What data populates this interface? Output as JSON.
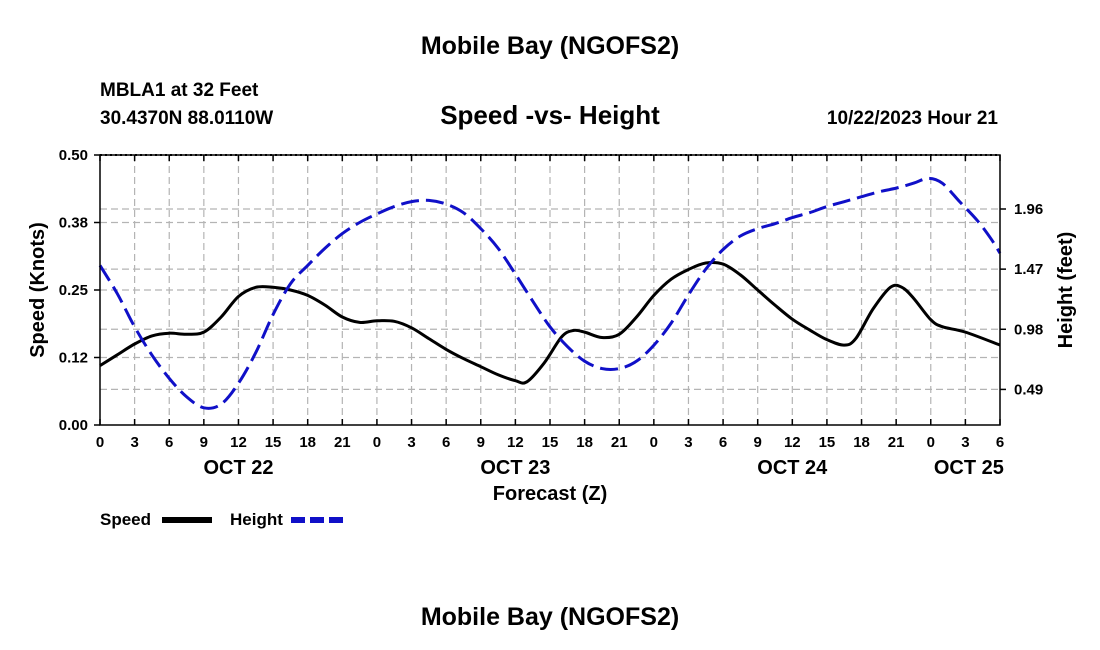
{
  "page_title": "Mobile Bay (NGOFS2)",
  "station": "MBLA1 at 32 Feet",
  "coordinates": "30.4370N  88.0110W",
  "forecast_time": "10/22/2023 Hour 21",
  "chart_data": {
    "type": "line",
    "title": "Speed -vs- Height",
    "xlabel": "Forecast (Z)",
    "ylabel": "Speed (Knots)",
    "y2label": "Height (feet)",
    "x_unit": "forecast hours from Oct 22 00Z",
    "xlim": [
      0,
      78
    ],
    "ylim": [
      0,
      0.5
    ],
    "y2lim": [
      0.2,
      2.4
    ],
    "x_ticks": [
      0,
      3,
      6,
      9,
      12,
      15,
      18,
      21,
      24,
      27,
      30,
      33,
      36,
      39,
      42,
      45,
      48,
      51,
      54,
      57,
      60,
      63,
      66,
      69,
      72,
      75,
      78
    ],
    "x_tick_labels": [
      "0",
      "3",
      "6",
      "9",
      "12",
      "15",
      "18",
      "21",
      "0",
      "3",
      "6",
      "9",
      "12",
      "15",
      "18",
      "21",
      "0",
      "3",
      "6",
      "9",
      "12",
      "15",
      "18",
      "21",
      "0",
      "3",
      "6"
    ],
    "date_labels": [
      {
        "x": 12,
        "label": "OCT 22"
      },
      {
        "x": 36,
        "label": "OCT 23"
      },
      {
        "x": 60,
        "label": "OCT 24"
      },
      {
        "x": 75.3,
        "label": "OCT 25"
      }
    ],
    "y_ticks": [
      0.0,
      0.125,
      0.25,
      0.375,
      0.5
    ],
    "y_tick_labels": [
      "0.00",
      "0.12",
      "0.25",
      "0.38",
      "0.50"
    ],
    "y2_ticks": [
      0.49,
      0.98,
      1.47,
      1.96
    ],
    "y2_tick_labels": [
      "0.49",
      "0.98",
      "1.47",
      "1.96"
    ],
    "grid": true,
    "legend": "bottom-left",
    "series": [
      {
        "name": "Speed",
        "axis": "left",
        "color": "#000000",
        "dash": "solid",
        "points": [
          [
            0,
            0.11
          ],
          [
            1.5,
            0.13
          ],
          [
            3,
            0.15
          ],
          [
            4.5,
            0.165
          ],
          [
            6,
            0.17
          ],
          [
            7.5,
            0.168
          ],
          [
            9,
            0.172
          ],
          [
            10.5,
            0.2
          ],
          [
            12,
            0.238
          ],
          [
            13.5,
            0.255
          ],
          [
            15,
            0.255
          ],
          [
            16.5,
            0.25
          ],
          [
            18,
            0.24
          ],
          [
            19.5,
            0.222
          ],
          [
            21,
            0.2
          ],
          [
            22.5,
            0.19
          ],
          [
            24,
            0.193
          ],
          [
            25.5,
            0.192
          ],
          [
            27,
            0.18
          ],
          [
            28.5,
            0.16
          ],
          [
            30,
            0.14
          ],
          [
            31.5,
            0.123
          ],
          [
            33,
            0.108
          ],
          [
            34.5,
            0.093
          ],
          [
            36,
            0.082
          ],
          [
            37,
            0.08
          ],
          [
            38.5,
            0.115
          ],
          [
            40,
            0.163
          ],
          [
            41,
            0.175
          ],
          [
            42,
            0.172
          ],
          [
            43.5,
            0.162
          ],
          [
            45,
            0.168
          ],
          [
            46.5,
            0.2
          ],
          [
            48,
            0.24
          ],
          [
            49.5,
            0.27
          ],
          [
            51,
            0.288
          ],
          [
            52.5,
            0.3
          ],
          [
            54,
            0.298
          ],
          [
            55.5,
            0.278
          ],
          [
            57,
            0.25
          ],
          [
            58.5,
            0.222
          ],
          [
            60,
            0.196
          ],
          [
            61.5,
            0.176
          ],
          [
            63,
            0.158
          ],
          [
            64.5,
            0.148
          ],
          [
            65.5,
            0.16
          ],
          [
            67,
            0.215
          ],
          [
            68.5,
            0.255
          ],
          [
            69.5,
            0.255
          ],
          [
            70.5,
            0.235
          ],
          [
            72,
            0.195
          ],
          [
            73,
            0.182
          ],
          [
            75,
            0.172
          ],
          [
            78,
            0.148
          ]
        ]
      },
      {
        "name": "Height",
        "axis": "right",
        "color": "#1010c8",
        "dash": "dashed",
        "points": [
          [
            0,
            1.5
          ],
          [
            1.5,
            1.27
          ],
          [
            3,
            1.0
          ],
          [
            4.5,
            0.77
          ],
          [
            6,
            0.58
          ],
          [
            7.5,
            0.43
          ],
          [
            9,
            0.34
          ],
          [
            10.5,
            0.37
          ],
          [
            12,
            0.54
          ],
          [
            13.5,
            0.79
          ],
          [
            15,
            1.1
          ],
          [
            16.5,
            1.35
          ],
          [
            18,
            1.5
          ],
          [
            19.5,
            1.64
          ],
          [
            21,
            1.76
          ],
          [
            22.5,
            1.85
          ],
          [
            24,
            1.92
          ],
          [
            25.5,
            1.98
          ],
          [
            27,
            2.02
          ],
          [
            28.5,
            2.03
          ],
          [
            30,
            2.0
          ],
          [
            31.5,
            1.93
          ],
          [
            33,
            1.8
          ],
          [
            34.5,
            1.64
          ],
          [
            36,
            1.43
          ],
          [
            37.5,
            1.21
          ],
          [
            39,
            1.0
          ],
          [
            40.5,
            0.84
          ],
          [
            42,
            0.72
          ],
          [
            43.5,
            0.66
          ],
          [
            45,
            0.66
          ],
          [
            46.5,
            0.72
          ],
          [
            48,
            0.85
          ],
          [
            49.5,
            1.03
          ],
          [
            51,
            1.26
          ],
          [
            52.5,
            1.47
          ],
          [
            54,
            1.63
          ],
          [
            55.5,
            1.74
          ],
          [
            57,
            1.8
          ],
          [
            58.5,
            1.84
          ],
          [
            60,
            1.89
          ],
          [
            61.5,
            1.93
          ],
          [
            63,
            1.98
          ],
          [
            64.5,
            2.02
          ],
          [
            66,
            2.06
          ],
          [
            67.5,
            2.1
          ],
          [
            69,
            2.13
          ],
          [
            70.5,
            2.17
          ],
          [
            71.8,
            2.21
          ],
          [
            73,
            2.17
          ],
          [
            74.5,
            2.02
          ],
          [
            76,
            1.87
          ],
          [
            77.2,
            1.72
          ],
          [
            78,
            1.6
          ]
        ]
      }
    ]
  }
}
